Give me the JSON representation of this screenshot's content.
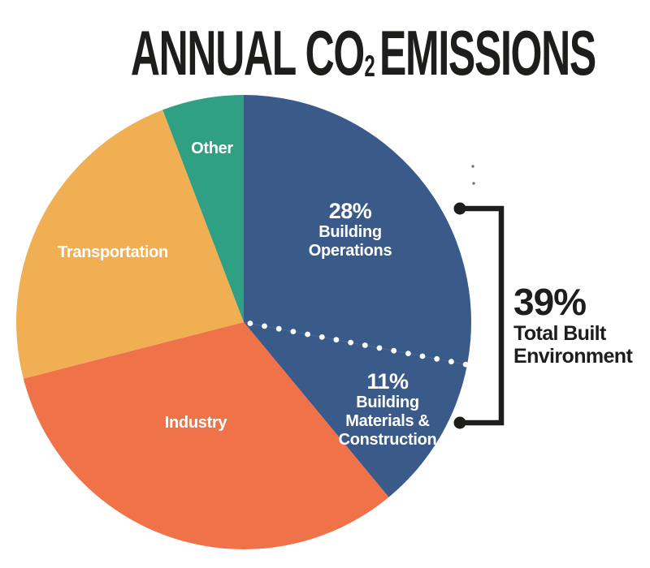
{
  "title": {
    "prefix": "ANNUAL CO",
    "subscript": "2",
    "suffix": "EMISSIONS"
  },
  "chart_data": {
    "type": "pie",
    "title": "ANNUAL CO2 EMISSIONS",
    "legend_position": "labels-inside-slices",
    "start_angle_deg_from_top": 0,
    "slices": [
      {
        "id": "building-operations",
        "label": "Building Operations",
        "value": 28,
        "percent_label": "28%",
        "color": "#3A5A8A"
      },
      {
        "id": "building-materials-construction",
        "label": "Building Materials & Construction",
        "value": 11,
        "percent_label": "11%",
        "color": "#3A5A8A"
      },
      {
        "id": "industry",
        "label": "Industry",
        "value": 32,
        "percent_label": "",
        "color": "#EF7248"
      },
      {
        "id": "transportation",
        "label": "Transportation",
        "value": 23.2,
        "percent_label": "",
        "color": "#F1AF53"
      },
      {
        "id": "other",
        "label": "Other",
        "value": 5.8,
        "percent_label": "",
        "color": "#2FA083"
      }
    ],
    "divider_between": [
      "building-operations",
      "building-materials-construction"
    ],
    "annotation": {
      "value": 39,
      "percent_label": "39%",
      "label": "Total Built Environment"
    }
  },
  "labels": {
    "other": "Other",
    "transportation": "Transportation",
    "industry": "Industry",
    "bo_pct": "28%",
    "bo_line1": "Building",
    "bo_line2": "Operations",
    "bmc_pct": "11%",
    "bmc_line1": "Building",
    "bmc_line2": "Materials &",
    "bmc_line3": "Construction"
  },
  "callout": {
    "percent": "39%",
    "line1": "Total Built",
    "line2": "Environment"
  },
  "colors": {
    "building_blue": "#3A5A8A",
    "industry_orange": "#EF7248",
    "transportation_yellow": "#F1AF53",
    "other_teal": "#2FA083",
    "ink": "#1d1d1b",
    "divider_dots": "#ffffff",
    "background": "#ffffff"
  }
}
